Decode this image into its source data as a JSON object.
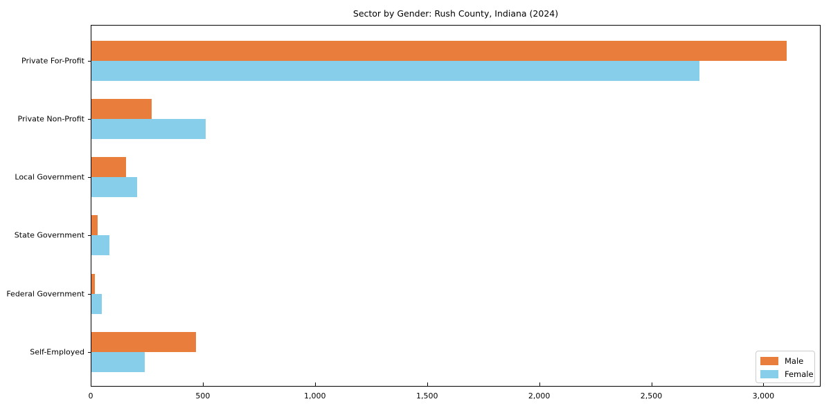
{
  "chart_data": {
    "type": "bar",
    "orientation": "horizontal",
    "title": "Sector by Gender: Rush County, Indiana (2024)",
    "categories": [
      "Private For-Profit",
      "Private Non-Profit",
      "Local Government",
      "State Government",
      "Federal Government",
      "Self-Employed"
    ],
    "series": [
      {
        "name": "Male",
        "color": "#e87d3c",
        "values": [
          3100,
          270,
          155,
          28,
          15,
          465
        ]
      },
      {
        "name": "Female",
        "color": "#87ceeb",
        "values": [
          2710,
          510,
          203,
          80,
          47,
          238
        ]
      }
    ],
    "xlabel": "",
    "ylabel": "",
    "xlim": [
      0,
      3255
    ],
    "x_ticks": [
      {
        "value": 0,
        "label": "0"
      },
      {
        "value": 500,
        "label": "500"
      },
      {
        "value": 1000,
        "label": "1,000"
      },
      {
        "value": 1500,
        "label": "1,500"
      },
      {
        "value": 2000,
        "label": "2,000"
      },
      {
        "value": 2500,
        "label": "2,500"
      },
      {
        "value": 3000,
        "label": "3,000"
      }
    ],
    "grid": false,
    "legend_position": "lower right",
    "plot_background": "#ffffff"
  }
}
